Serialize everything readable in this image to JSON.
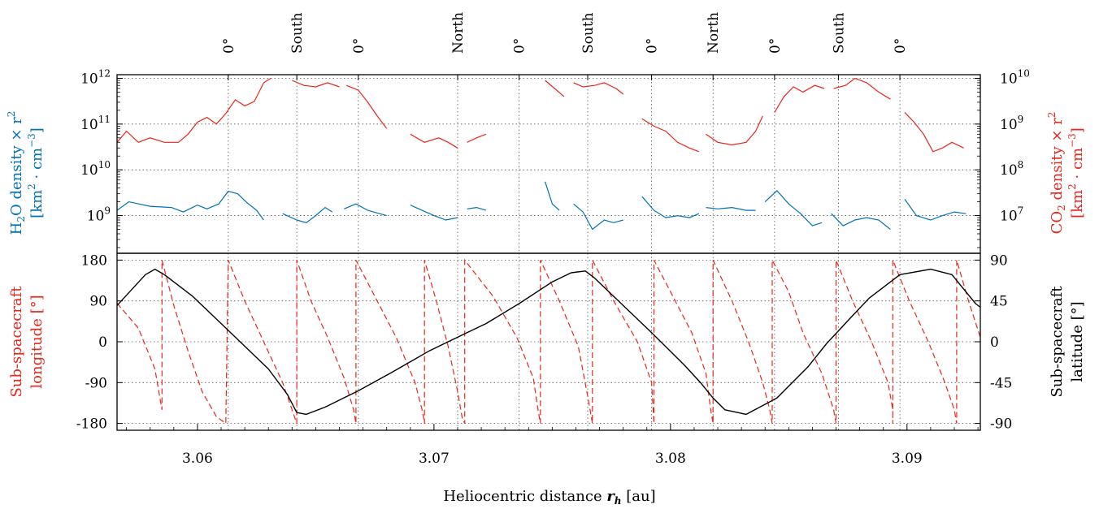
{
  "chart_data": [
    {
      "type": "line",
      "panel": "top",
      "top_ticks": {
        "values": [
          3.0613,
          3.0642,
          3.0668,
          3.071,
          3.0736,
          3.0765,
          3.0792,
          3.0818,
          3.0844,
          3.0871,
          3.0897
        ],
        "labels": [
          "0°",
          "South",
          "0°",
          "North",
          "0°",
          "South",
          "0°",
          "North",
          "0°",
          "South",
          "0°"
        ]
      },
      "xlim": [
        3.0566,
        3.0931
      ],
      "left_axis": {
        "scale": "log",
        "ylim": [
          150000000,
          1200000000000
        ],
        "ticks": [
          1000000000,
          10000000000,
          100000000000,
          1000000000000
        ],
        "tick_labels": [
          "10",
          "10",
          "10",
          "10"
        ],
        "tick_exponents": [
          "9",
          "10",
          "11",
          "12"
        ],
        "label_line1": "H",
        "label_line1_sub": "2",
        "label_line1_rest": "O density × r",
        "label_line1_sup": "2",
        "label_line2": "[km",
        "label_line2_sup1": "2",
        "label_line2_mid": " · cm",
        "label_line2_sup2": "−3",
        "label_line2_end": "]",
        "color": "#0072b2"
      },
      "right_axis": {
        "scale": "log",
        "ylim": [
          1500000,
          12000000000
        ],
        "ticks": [
          10000000,
          100000000,
          1000000000,
          10000000000
        ],
        "tick_labels": [
          "10",
          "10",
          "10",
          "10"
        ],
        "tick_exponents": [
          "7",
          "8",
          "9",
          "10"
        ],
        "label_line1": "CO",
        "label_line1_sub": "2",
        "label_line1_rest": " density × r",
        "label_line1_sup": "2",
        "label_line2": "[km",
        "label_line2_sup1": "2",
        "label_line2_mid": " · cm",
        "label_line2_sup2": "−3",
        "label_line2_end": "]",
        "color": "#e8261c"
      },
      "grid": true,
      "series_style": [
        {
          "axis": "left",
          "color": "#0072b2"
        },
        {
          "axis": "right",
          "color": "#e8261c"
        }
      ],
      "h2o_segments": [
        [
          [
            3.0566,
            1300000000.0
          ],
          [
            3.0571,
            2000000000.0
          ],
          [
            3.058,
            1600000000.0
          ],
          [
            3.0589,
            1500000000.0
          ],
          [
            3.0594,
            1200000000.0
          ],
          [
            3.06,
            1700000000.0
          ],
          [
            3.0604,
            1400000000.0
          ],
          [
            3.0609,
            1800000000.0
          ],
          [
            3.0613,
            3400000000.0
          ],
          [
            3.0617,
            3000000000.0
          ],
          [
            3.0621,
            1900000000.0
          ],
          [
            3.0625,
            1300000000.0
          ],
          [
            3.0628,
            800000000.0
          ]
        ],
        [
          [
            3.0636,
            1100000000.0
          ],
          [
            3.0642,
            800000000.0
          ],
          [
            3.0646,
            700000000.0
          ],
          [
            3.065,
            1000000000.0
          ],
          [
            3.0654,
            1500000000.0
          ],
          [
            3.0657,
            1200000000.0
          ]
        ],
        [
          [
            3.0662,
            1400000000.0
          ],
          [
            3.0667,
            1800000000.0
          ],
          [
            3.0672,
            1300000000.0
          ],
          [
            3.0677,
            1100000000.0
          ],
          [
            3.068,
            1000000000.0
          ]
        ],
        [
          [
            3.069,
            1700000000.0
          ],
          [
            3.0695,
            1300000000.0
          ],
          [
            3.07,
            1000000000.0
          ],
          [
            3.0705,
            800000000.0
          ],
          [
            3.071,
            900000000.0
          ]
        ],
        [
          [
            3.0714,
            1400000000.0
          ],
          [
            3.0718,
            1500000000.0
          ],
          [
            3.0722,
            1300000000.0
          ]
        ],
        [
          [
            3.0747,
            5500000000.0
          ],
          [
            3.075,
            1800000000.0
          ],
          [
            3.0753,
            1300000000.0
          ]
        ],
        [
          [
            3.0759,
            1800000000.0
          ],
          [
            3.0763,
            1200000000.0
          ],
          [
            3.0767,
            500000000.0
          ],
          [
            3.0772,
            800000000.0
          ],
          [
            3.0776,
            700000000.0
          ],
          [
            3.078,
            800000000.0
          ]
        ],
        [
          [
            3.0788,
            2600000000.0
          ],
          [
            3.0793,
            1300000000.0
          ],
          [
            3.0798,
            900000000.0
          ],
          [
            3.0803,
            1000000000.0
          ],
          [
            3.0808,
            900000000.0
          ],
          [
            3.0812,
            1100000000.0
          ]
        ],
        [
          [
            3.0815,
            1500000000.0
          ],
          [
            3.082,
            1400000000.0
          ],
          [
            3.0826,
            1500000000.0
          ],
          [
            3.0832,
            1300000000.0
          ],
          [
            3.0836,
            1300000000.0
          ]
        ],
        [
          [
            3.084,
            2000000000.0
          ],
          [
            3.0845,
            3500000000.0
          ],
          [
            3.085,
            1800000000.0
          ],
          [
            3.0855,
            1100000000.0
          ],
          [
            3.086,
            600000000.0
          ],
          [
            3.0864,
            700000000.0
          ]
        ],
        [
          [
            3.0868,
            1100000000.0
          ],
          [
            3.0873,
            600000000.0
          ],
          [
            3.0878,
            800000000.0
          ],
          [
            3.0883,
            900000000.0
          ],
          [
            3.0888,
            800000000.0
          ],
          [
            3.0893,
            500000000.0
          ]
        ],
        [
          [
            3.0899,
            2300000000.0
          ],
          [
            3.0904,
            1000000000.0
          ],
          [
            3.091,
            800000000.0
          ],
          [
            3.0915,
            1000000000.0
          ],
          [
            3.092,
            1200000000.0
          ],
          [
            3.0925,
            1100000000.0
          ]
        ]
      ],
      "co2_segments": [
        [
          [
            3.0566,
            400000000.0
          ],
          [
            3.057,
            700000000.0
          ],
          [
            3.0575,
            400000000.0
          ],
          [
            3.058,
            500000000.0
          ],
          [
            3.0586,
            400000000.0
          ],
          [
            3.0592,
            400000000.0
          ],
          [
            3.0596,
            600000000.0
          ],
          [
            3.06,
            1100000000.0
          ],
          [
            3.0604,
            1400000000.0
          ],
          [
            3.0608,
            1000000000.0
          ],
          [
            3.0612,
            1700000000.0
          ],
          [
            3.0616,
            3400000000.0
          ],
          [
            3.062,
            2500000000.0
          ],
          [
            3.0624,
            3100000000.0
          ],
          [
            3.0628,
            8000000000.0
          ],
          [
            3.0631,
            10000000000.0
          ]
        ],
        [
          [
            3.064,
            9000000000.0
          ],
          [
            3.0645,
            7000000000.0
          ],
          [
            3.065,
            6500000000.0
          ],
          [
            3.0655,
            8000000000.0
          ],
          [
            3.066,
            6500000000.0
          ]
        ],
        [
          [
            3.0663,
            7000000000.0
          ],
          [
            3.0668,
            5500000000.0
          ],
          [
            3.0672,
            3000000000.0
          ],
          [
            3.0676,
            1500000000.0
          ],
          [
            3.068,
            800000000.0
          ]
        ],
        [
          [
            3.069,
            600000000.0
          ],
          [
            3.0696,
            400000000.0
          ],
          [
            3.0702,
            500000000.0
          ],
          [
            3.0706,
            400000000.0
          ],
          [
            3.071,
            300000000.0
          ]
        ],
        [
          [
            3.0714,
            400000000.0
          ],
          [
            3.0718,
            500000000.0
          ],
          [
            3.0722,
            600000000.0
          ]
        ],
        [
          [
            3.0747,
            9000000000.0
          ],
          [
            3.0751,
            6000000000.0
          ],
          [
            3.0755,
            4000000000.0
          ]
        ],
        [
          [
            3.0759,
            8000000000.0
          ],
          [
            3.0763,
            6500000000.0
          ],
          [
            3.0768,
            7000000000.0
          ],
          [
            3.0772,
            8000000000.0
          ],
          [
            3.0777,
            6000000000.0
          ],
          [
            3.078,
            4500000000.0
          ]
        ],
        [
          [
            3.0788,
            1300000000.0
          ],
          [
            3.0793,
            900000000.0
          ],
          [
            3.0798,
            700000000.0
          ],
          [
            3.0803,
            400000000.0
          ],
          [
            3.0808,
            300000000.0
          ],
          [
            3.0812,
            250000000.0
          ]
        ],
        [
          [
            3.0815,
            600000000.0
          ],
          [
            3.082,
            400000000.0
          ],
          [
            3.0826,
            350000000.0
          ],
          [
            3.0832,
            400000000.0
          ],
          [
            3.0836,
            700000000.0
          ],
          [
            3.0839,
            1500000000.0
          ]
        ],
        [
          [
            3.0844,
            1800000000.0
          ],
          [
            3.0848,
            4000000000.0
          ],
          [
            3.0852,
            6500000000.0
          ],
          [
            3.0856,
            5000000000.0
          ],
          [
            3.0861,
            7000000000.0
          ],
          [
            3.0865,
            6000000000.0
          ]
        ],
        [
          [
            3.0869,
            6000000000.0
          ],
          [
            3.0874,
            7000000000.0
          ],
          [
            3.0878,
            10000000000.0
          ],
          [
            3.0883,
            8000000000.0
          ],
          [
            3.0888,
            5000000000.0
          ],
          [
            3.0893,
            3500000000.0
          ]
        ],
        [
          [
            3.0899,
            1800000000.0
          ],
          [
            3.0903,
            1100000000.0
          ],
          [
            3.0907,
            600000000.0
          ],
          [
            3.0911,
            250000000.0
          ],
          [
            3.0915,
            300000000.0
          ],
          [
            3.0919,
            400000000.0
          ],
          [
            3.0924,
            300000000.0
          ]
        ]
      ]
    },
    {
      "type": "line",
      "panel": "bottom",
      "xlim": [
        3.0566,
        3.0931
      ],
      "xticks": [
        3.06,
        3.07,
        3.08,
        3.09
      ],
      "xtick_labels": [
        "3.06",
        "3.07",
        "3.08",
        "3.09"
      ],
      "xlabel": "Heliocentric distance ",
      "xlabel_var": "r",
      "xlabel_var_sub": "h",
      "xlabel_unit": " [au]",
      "left_axis": {
        "ylim": [
          -195,
          195
        ],
        "ticks": [
          180,
          90,
          0,
          -90,
          -180
        ],
        "tick_labels": [
          "180",
          "90",
          "0",
          "-90",
          "-180"
        ],
        "label_line1": "Sub-spacecraft",
        "label_line2": "longitude [°]",
        "color": "#e8261c"
      },
      "right_axis": {
        "ylim": [
          -97.5,
          97.5
        ],
        "ticks": [
          90,
          45,
          0,
          -45,
          -90
        ],
        "tick_labels": [
          "90",
          "45",
          "0",
          "-45",
          "-90"
        ],
        "label_line1": "Sub-spacecraft",
        "label_line2": "latitude [°]",
        "color": "#000000"
      },
      "grid": true,
      "latitude": {
        "color": "#000000",
        "x": [
          3.0566,
          3.0578,
          3.0582,
          3.0586,
          3.0598,
          3.0614,
          3.063,
          3.0638,
          3.0642,
          3.0646,
          3.0654,
          3.0668,
          3.0682,
          3.0698,
          3.0706,
          3.071,
          3.0714,
          3.0722,
          3.0736,
          3.075,
          3.0758,
          3.0764,
          3.0768,
          3.0776,
          3.0792,
          3.0806,
          3.0813,
          3.0818,
          3.0823,
          3.0832,
          3.0845,
          3.0858,
          3.0866,
          3.0871,
          3.0876,
          3.0884,
          3.0897,
          3.091,
          3.0919,
          3.0924,
          3.0929,
          3.0931
        ],
        "y": [
          40,
          74,
          80,
          74,
          50,
          10,
          -30,
          -58,
          -78,
          -80,
          -72,
          -54,
          -34,
          -10,
          0,
          5,
          10,
          20,
          42,
          66,
          76,
          78,
          70,
          50,
          10,
          -26,
          -46,
          -62,
          -75,
          -80,
          -62,
          -28,
          -2,
          12,
          26,
          48,
          74,
          80,
          74,
          58,
          42,
          38
        ]
      },
      "longitude": {
        "color": "#e8261c",
        "style": "dashed",
        "x": [
          3.0566,
          3.0575,
          3.0582,
          3.0585,
          3.0585,
          3.059,
          3.0596,
          3.0602,
          3.0608,
          3.0612,
          3.0613,
          3.0613,
          3.062,
          3.0628,
          3.0636,
          3.064,
          3.0642,
          3.0642,
          3.0648,
          3.0655,
          3.0662,
          3.0666,
          3.0667,
          3.0667,
          3.0675,
          3.0684,
          3.0692,
          3.0695,
          3.0696,
          3.0696,
          3.0701,
          3.0706,
          3.071,
          3.0712,
          3.0713,
          3.0713,
          3.0725,
          3.0735,
          3.0742,
          3.0744,
          3.0745,
          3.0745,
          3.0753,
          3.0761,
          3.0765,
          3.0767,
          3.0767,
          3.0776,
          3.0786,
          3.0792,
          3.0793,
          3.0793,
          3.0801,
          3.0809,
          3.0815,
          3.0817,
          3.0818,
          3.0818,
          3.0826,
          3.0833,
          3.0839,
          3.0842,
          3.0843,
          3.0843,
          3.085,
          3.0856,
          3.0864,
          3.0869,
          3.087,
          3.087,
          3.0877,
          3.0885,
          3.0892,
          3.0894,
          3.0894,
          3.0894,
          3.0901,
          3.0909,
          3.0916,
          3.092,
          3.0921,
          3.0921,
          3.0926,
          3.0931
        ],
        "y": [
          85,
          30,
          -60,
          -150,
          180,
          80,
          -20,
          -110,
          -165,
          -180,
          180,
          180,
          90,
          0,
          -90,
          -150,
          -180,
          180,
          90,
          10,
          -80,
          -150,
          -180,
          180,
          100,
          10,
          -90,
          -150,
          -180,
          180,
          90,
          -10,
          -110,
          -170,
          -180,
          180,
          100,
          10,
          -80,
          -150,
          -180,
          180,
          90,
          -10,
          -120,
          -180,
          180,
          90,
          0,
          -90,
          -180,
          180,
          100,
          20,
          -70,
          -150,
          -180,
          180,
          90,
          0,
          -90,
          -150,
          -180,
          180,
          110,
          20,
          -70,
          -150,
          -180,
          180,
          90,
          0,
          -90,
          -150,
          -180,
          180,
          90,
          0,
          -90,
          -150,
          -180,
          180,
          90,
          10
        ]
      }
    }
  ]
}
